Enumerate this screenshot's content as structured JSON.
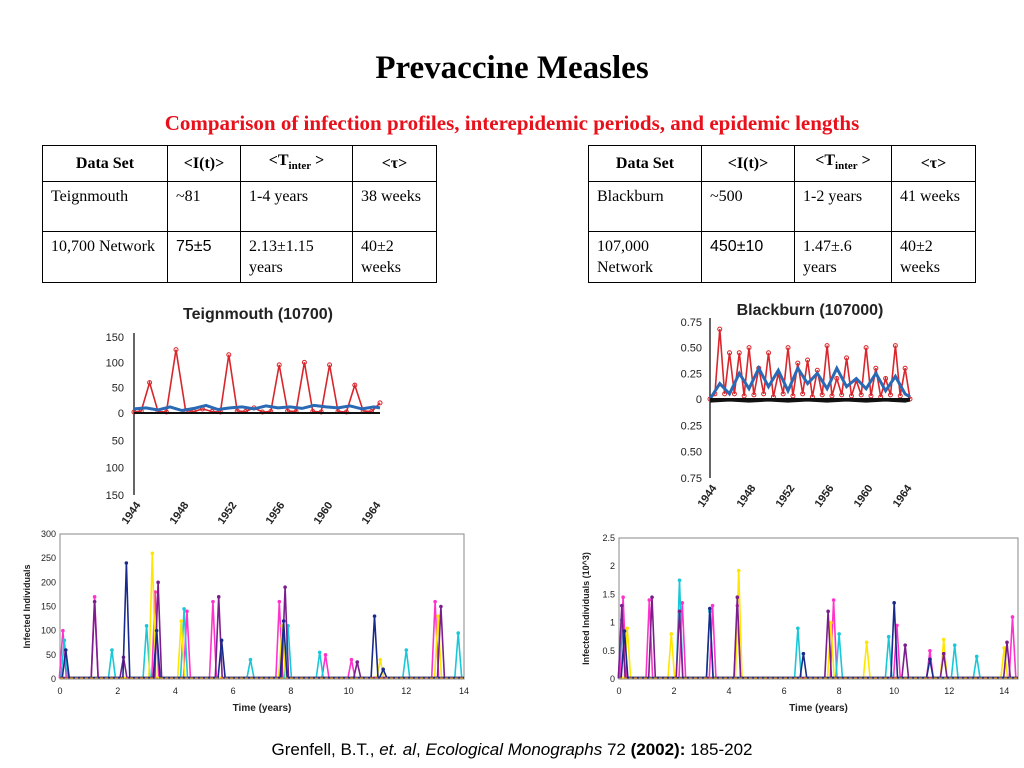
{
  "slide": {
    "title": "Prevaccine Measles",
    "subtitle": "Comparison of infection profiles, interepidemic periods, and epidemic lengths"
  },
  "tables": [
    {
      "headers": {
        "c0": "Data Set",
        "c1": "<I(t)>",
        "c2_pre": "<T",
        "c2_sub": "inter",
        "c2_post": " >",
        "c3": "<τ>"
      },
      "rows": [
        {
          "c0": "Teignmouth",
          "c1": "~81",
          "c2": "1-4 years",
          "c3": "38 weeks"
        },
        {
          "c0": "10,700 Network",
          "c1": "75±5",
          "c2": "2.13±1.15 years",
          "c3": "40±2 weeks"
        }
      ]
    },
    {
      "headers": {
        "c0": "Data Set",
        "c1": "<I(t)>",
        "c2_pre": "<T",
        "c2_sub": "inter",
        "c2_post": " >",
        "c3": "<τ>"
      },
      "rows": [
        {
          "c0": "Blackburn",
          "c1": "~500",
          "c2": "1-2 years",
          "c3": "41 weeks"
        },
        {
          "c0": "107,000 Network",
          "c1": "450±10",
          "c2": "1.47±.6 years",
          "c3": "40±2 weeks"
        }
      ]
    }
  ],
  "chart_data": [
    {
      "type": "line",
      "title": "Teignmouth (10700)",
      "y_ticks_top": [
        "150",
        "100",
        "50",
        "0"
      ],
      "y_ticks_bottom": [
        "50",
        "100",
        "150"
      ],
      "x_ticks": [
        "1944",
        "1948",
        "1952",
        "1956",
        "1960",
        "1964"
      ],
      "ylim": [
        -150,
        150
      ],
      "series": [
        {
          "values_x": [
            1944.0,
            1944.6,
            1945.3,
            1946.0,
            1946.7,
            1947.5,
            1948.3,
            1949.0,
            1949.7,
            1950.5,
            1951.2,
            1951.9,
            1952.6,
            1953.3,
            1954.0,
            1954.7,
            1955.4,
            1956.1,
            1956.8,
            1957.5,
            1958.2,
            1958.9,
            1959.6,
            1960.3,
            1961.0,
            1961.7,
            1962.4,
            1963.1,
            1963.8,
            1964.5
          ],
          "values_y": [
            2,
            4,
            60,
            3,
            2,
            125,
            5,
            3,
            8,
            3,
            2,
            115,
            4,
            3,
            10,
            2,
            3,
            95,
            4,
            3,
            100,
            3,
            2,
            95,
            3,
            2,
            55,
            4,
            3,
            20
          ]
        },
        {
          "values_x": [
            1944.0,
            1945.0,
            1946.0,
            1947.0,
            1948.0,
            1949.0,
            1950.0,
            1951.0,
            1952.0,
            1953.0,
            1954.0,
            1955.0,
            1956.0,
            1957.0,
            1958.0,
            1959.0,
            1960.0,
            1961.0,
            1962.0,
            1963.0,
            1964.0,
            1964.5
          ],
          "values_y": [
            8,
            10,
            6,
            12,
            5,
            9,
            15,
            7,
            10,
            12,
            8,
            14,
            10,
            12,
            9,
            15,
            12,
            10,
            14,
            8,
            12,
            10
          ]
        }
      ],
      "colors": [
        "#d9262c",
        "#2a6ab5"
      ]
    },
    {
      "type": "line",
      "title": "Blackburn (107000)",
      "y_ticks_top": [
        "0.75",
        "0.50",
        "0.25",
        "0"
      ],
      "y_ticks_bottom": [
        "0.25",
        "0.50",
        "0.75"
      ],
      "x_ticks": [
        "1944",
        "1948",
        "1952",
        "1956",
        "1960",
        "1964"
      ],
      "ylim": [
        -0.75,
        0.75
      ],
      "series": [
        {
          "values_x": [
            1944.0,
            1944.5,
            1945.0,
            1945.5,
            1946.0,
            1946.5,
            1947.0,
            1947.5,
            1948.0,
            1948.5,
            1949.0,
            1949.5,
            1950.0,
            1950.5,
            1951.0,
            1951.5,
            1952.0,
            1952.5,
            1953.0,
            1953.5,
            1954.0,
            1954.5,
            1955.0,
            1955.5,
            1956.0,
            1956.5,
            1957.0,
            1957.5,
            1958.0,
            1958.5,
            1959.0,
            1959.5,
            1960.0,
            1960.5,
            1961.0,
            1961.5,
            1962.0,
            1962.5,
            1963.0,
            1963.5,
            1964.0,
            1964.5
          ],
          "values_y": [
            0.0,
            0.05,
            0.68,
            0.05,
            0.45,
            0.05,
            0.45,
            0.03,
            0.5,
            0.04,
            0.3,
            0.05,
            0.45,
            0.02,
            0.25,
            0.05,
            0.5,
            0.03,
            0.35,
            0.05,
            0.38,
            0.02,
            0.28,
            0.04,
            0.52,
            0.03,
            0.2,
            0.04,
            0.4,
            0.03,
            0.18,
            0.04,
            0.5,
            0.03,
            0.3,
            0.02,
            0.2,
            0.04,
            0.52,
            0.03,
            0.3,
            0.0
          ]
        },
        {
          "values_x": [
            1944.0,
            1945.0,
            1946.0,
            1947.0,
            1948.0,
            1949.0,
            1950.0,
            1951.0,
            1952.0,
            1953.0,
            1954.0,
            1955.0,
            1956.0,
            1957.0,
            1958.0,
            1959.0,
            1960.0,
            1961.0,
            1962.0,
            1963.0,
            1964.0,
            1964.5
          ],
          "values_y": [
            0.0,
            0.15,
            0.05,
            0.25,
            0.1,
            0.3,
            0.12,
            0.28,
            0.08,
            0.3,
            0.15,
            0.25,
            0.1,
            0.3,
            0.12,
            0.2,
            0.1,
            0.25,
            0.08,
            0.22,
            0.05,
            0.02
          ]
        },
        {
          "values_x": [
            1944.0,
            1946.0,
            1948.0,
            1950.0,
            1952.0,
            1954.0,
            1956.0,
            1958.0,
            1960.0,
            1962.0,
            1964.0,
            1964.5
          ],
          "values_y": [
            -0.02,
            -0.01,
            -0.02,
            -0.01,
            -0.02,
            -0.01,
            -0.02,
            -0.01,
            -0.02,
            -0.01,
            -0.02,
            -0.01
          ]
        }
      ],
      "colors": [
        "#d9262c",
        "#2a6ab5",
        "#111111"
      ]
    },
    {
      "type": "line",
      "xlabel": "Time (years)",
      "ylabel": "Infected Individuals",
      "x_ticks": [
        "0",
        "2",
        "4",
        "6",
        "8",
        "10",
        "12",
        "14"
      ],
      "y_ticks": [
        "0",
        "50",
        "100",
        "150",
        "200",
        "250",
        "300"
      ],
      "xlim": [
        0,
        14
      ],
      "ylim": [
        0,
        300
      ],
      "series": [
        {
          "color": "#ff33cc",
          "peaks": [
            [
              0.1,
              100
            ],
            [
              1.2,
              170
            ],
            [
              3.3,
              180
            ],
            [
              4.4,
              140
            ],
            [
              5.3,
              160
            ],
            [
              7.6,
              160
            ],
            [
              9.2,
              50
            ],
            [
              10.1,
              40
            ],
            [
              13.0,
              160
            ]
          ]
        },
        {
          "color": "#19c8d8",
          "peaks": [
            [
              0.15,
              80
            ],
            [
              1.8,
              60
            ],
            [
              3.0,
              110
            ],
            [
              4.3,
              145
            ],
            [
              6.6,
              40
            ],
            [
              7.9,
              110
            ],
            [
              9.0,
              55
            ],
            [
              12.0,
              60
            ],
            [
              13.8,
              95
            ]
          ]
        },
        {
          "color": "#ffe600",
          "peaks": [
            [
              3.2,
              260
            ],
            [
              4.2,
              120
            ],
            [
              7.7,
              110
            ],
            [
              11.1,
              40
            ],
            [
              13.1,
              130
            ]
          ]
        },
        {
          "color": "#7a1e8c",
          "peaks": [
            [
              1.2,
              160
            ],
            [
              2.2,
              45
            ],
            [
              3.4,
              200
            ],
            [
              5.5,
              170
            ],
            [
              7.8,
              190
            ],
            [
              10.3,
              35
            ],
            [
              13.2,
              150
            ]
          ]
        },
        {
          "color": "#1a2a8a",
          "peaks": [
            [
              0.2,
              60
            ],
            [
              2.3,
              240
            ],
            [
              3.35,
              100
            ],
            [
              5.6,
              80
            ],
            [
              7.75,
              120
            ],
            [
              10.9,
              130
            ],
            [
              11.2,
              20
            ]
          ]
        }
      ]
    },
    {
      "type": "line",
      "xlabel": "Time (years)",
      "ylabel": "Infected Individuals (10^3)",
      "x_ticks": [
        "0",
        "2",
        "4",
        "6",
        "8",
        "10",
        "12",
        "14"
      ],
      "y_ticks": [
        "0",
        "0.5",
        "1",
        "1.5",
        "2",
        "2.5"
      ],
      "xlim": [
        0,
        14.5
      ],
      "ylim": [
        0,
        2.5
      ],
      "series": [
        {
          "color": "#ff33cc",
          "peaks": [
            [
              0.15,
              1.45
            ],
            [
              1.1,
              1.4
            ],
            [
              2.3,
              1.35
            ],
            [
              3.4,
              1.3
            ],
            [
              4.3,
              1.3
            ],
            [
              7.8,
              1.4
            ],
            [
              10.1,
              0.95
            ],
            [
              11.3,
              0.5
            ],
            [
              14.3,
              1.1
            ]
          ]
        },
        {
          "color": "#19c8d8",
          "peaks": [
            [
              0.1,
              1.05
            ],
            [
              2.2,
              1.75
            ],
            [
              3.3,
              1.2
            ],
            [
              6.5,
              0.9
            ],
            [
              8.0,
              0.8
            ],
            [
              9.8,
              0.75
            ],
            [
              12.2,
              0.6
            ],
            [
              13.0,
              0.4
            ]
          ]
        },
        {
          "color": "#ffe600",
          "peaks": [
            [
              0.3,
              0.9
            ],
            [
              1.9,
              0.8
            ],
            [
              4.35,
              1.92
            ],
            [
              7.7,
              1.0
            ],
            [
              9.0,
              0.65
            ],
            [
              11.8,
              0.7
            ],
            [
              14.0,
              0.55
            ]
          ]
        },
        {
          "color": "#7a1e8c",
          "peaks": [
            [
              0.1,
              1.3
            ],
            [
              1.2,
              1.45
            ],
            [
              2.2,
              1.2
            ],
            [
              4.3,
              1.45
            ],
            [
              7.6,
              1.2
            ],
            [
              10.4,
              0.6
            ],
            [
              11.8,
              0.45
            ],
            [
              14.1,
              0.65
            ]
          ]
        },
        {
          "color": "#1a2a8a",
          "peaks": [
            [
              0.2,
              0.85
            ],
            [
              3.3,
              1.25
            ],
            [
              6.7,
              0.45
            ],
            [
              10.0,
              1.35
            ],
            [
              11.3,
              0.35
            ]
          ]
        }
      ]
    }
  ],
  "citation": {
    "author": "Grenfell, B.T., ",
    "etal": "et. al",
    "sep": ", ",
    "journal": "Ecological Monographs",
    "volume": " 72 ",
    "year": "(2002):",
    "pages": " 185-202"
  }
}
